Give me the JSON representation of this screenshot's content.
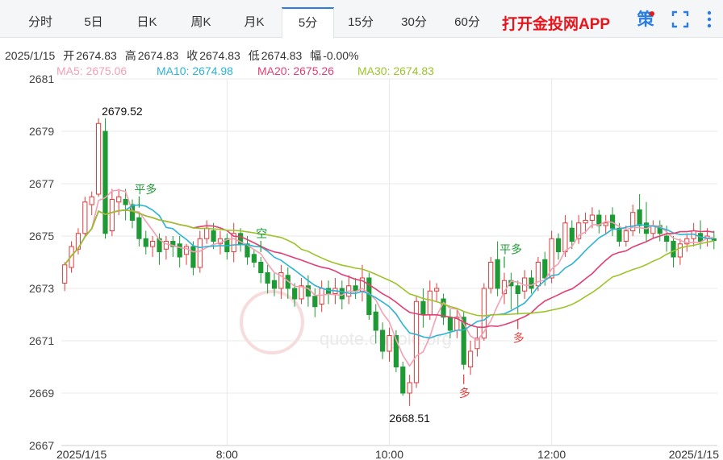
{
  "tabs": [
    {
      "label": "分时",
      "active": false
    },
    {
      "label": "5日",
      "active": false
    },
    {
      "label": "日K",
      "active": false
    },
    {
      "label": "周K",
      "active": false
    },
    {
      "label": "月K",
      "active": false
    },
    {
      "label": "5分",
      "active": true
    },
    {
      "label": "15分",
      "active": false
    },
    {
      "label": "30分",
      "active": false
    },
    {
      "label": "60分",
      "active": false
    }
  ],
  "promo_link": "打开金投网APP",
  "toolbar": {
    "strategy_icon_text": "策",
    "fullscreen_icon": "fullscreen-icon",
    "more_icon": "more-icon"
  },
  "quote": {
    "date": "2025/1/15",
    "open_label": "开",
    "open": "2674.83",
    "high_label": "高",
    "high": "2674.83",
    "close_label": "收",
    "close": "2674.83",
    "low_label": "低",
    "low": "2674.83",
    "change_label": "幅",
    "change": "-0.00%"
  },
  "ma_legend": [
    {
      "label": "MA5: 2675.06",
      "color": "#f4a0b4"
    },
    {
      "label": "MA10: 2674.98",
      "color": "#2bb3d6"
    },
    {
      "label": "MA20: 2675.26",
      "color": "#e23f72"
    },
    {
      "label": "MA30: 2674.83",
      "color": "#9cc42a"
    }
  ],
  "colors": {
    "up": "#e23b3b",
    "down": "#1e9a35",
    "grid": "#e8e8e8",
    "accent": "#2a7de1"
  },
  "chart_data": {
    "type": "candlestick",
    "y_ticks": [
      "2681",
      "2679",
      "2677",
      "2675",
      "2673",
      "2671",
      "2669",
      "2667"
    ],
    "ylim": [
      2667,
      2681
    ],
    "x_tick_labels": [
      {
        "label": "2025/1/15",
        "index": 0
      },
      {
        "label": "8:00",
        "index": 24
      },
      {
        "label": "10:00",
        "index": 48
      },
      {
        "label": "12:00",
        "index": 72
      },
      {
        "label": "2025/1/15",
        "index": 88
      }
    ],
    "candles": [
      [
        2673.2,
        2673.9,
        2672.9,
        2674.0
      ],
      [
        2673.8,
        2674.6,
        2673.6,
        2674.8
      ],
      [
        2674.5,
        2675.1,
        2674.3,
        2675.3
      ],
      [
        2675.1,
        2676.3,
        2675.0,
        2676.5
      ],
      [
        2676.2,
        2676.5,
        2675.8,
        2676.7
      ],
      [
        2676.6,
        2679.3,
        2676.5,
        2679.5
      ],
      [
        2679.0,
        2675.1,
        2674.9,
        2679.5
      ],
      [
        2675.2,
        2676.4,
        2675.0,
        2676.8
      ],
      [
        2676.3,
        2676.5,
        2675.8,
        2676.8
      ],
      [
        2676.4,
        2676.2,
        2675.6,
        2676.8
      ],
      [
        2676.2,
        2675.6,
        2675.3,
        2676.4
      ],
      [
        2675.7,
        2674.9,
        2674.6,
        2675.9
      ],
      [
        2674.9,
        2674.6,
        2674.3,
        2675.2
      ],
      [
        2674.6,
        2674.8,
        2674.2,
        2675.0
      ],
      [
        2674.9,
        2674.4,
        2673.9,
        2675.1
      ],
      [
        2674.5,
        2674.8,
        2674.1,
        2675.0
      ],
      [
        2674.8,
        2674.6,
        2674.2,
        2675.0
      ],
      [
        2674.7,
        2674.2,
        2673.8,
        2675.0
      ],
      [
        2674.3,
        2674.6,
        2673.9,
        2674.7
      ],
      [
        2674.6,
        2673.8,
        2673.5,
        2674.8
      ],
      [
        2673.8,
        2674.9,
        2673.6,
        2675.2
      ],
      [
        2674.9,
        2675.3,
        2674.7,
        2675.6
      ],
      [
        2675.2,
        2674.8,
        2674.5,
        2675.5
      ],
      [
        2674.7,
        2674.9,
        2674.3,
        2675.2
      ],
      [
        2674.9,
        2674.4,
        2674.1,
        2675.1
      ],
      [
        2674.4,
        2675.1,
        2674.0,
        2675.5
      ],
      [
        2675.1,
        2674.7,
        2674.4,
        2675.3
      ],
      [
        2674.7,
        2674.2,
        2673.9,
        2675.0
      ],
      [
        2674.3,
        2674.0,
        2673.8,
        2674.5
      ],
      [
        2674.0,
        2673.6,
        2673.2,
        2674.2
      ],
      [
        2673.6,
        2673.2,
        2672.8,
        2673.9
      ],
      [
        2673.3,
        2673.0,
        2672.7,
        2673.6
      ],
      [
        2673.0,
        2673.6,
        2672.6,
        2673.9
      ],
      [
        2673.5,
        2673.0,
        2672.6,
        2673.8
      ],
      [
        2673.0,
        2672.6,
        2672.3,
        2673.2
      ],
      [
        2672.6,
        2673.1,
        2672.4,
        2673.4
      ],
      [
        2673.1,
        2672.7,
        2672.3,
        2673.5
      ],
      [
        2672.7,
        2672.3,
        2671.9,
        2673.0
      ],
      [
        2672.4,
        2673.0,
        2672.1,
        2673.3
      ],
      [
        2673.0,
        2672.8,
        2672.4,
        2673.3
      ],
      [
        2672.8,
        2673.0,
        2672.4,
        2673.4
      ],
      [
        2673.0,
        2672.6,
        2672.2,
        2673.3
      ],
      [
        2672.7,
        2673.1,
        2672.4,
        2673.5
      ],
      [
        2673.1,
        2672.9,
        2672.6,
        2673.4
      ],
      [
        2672.9,
        2673.4,
        2672.5,
        2673.9
      ],
      [
        2673.4,
        2672.0,
        2671.8,
        2673.6
      ],
      [
        2672.1,
        2671.4,
        2670.9,
        2672.4
      ],
      [
        2671.4,
        2670.6,
        2670.3,
        2671.7
      ],
      [
        2670.6,
        2671.2,
        2670.2,
        2671.5
      ],
      [
        2671.2,
        2670.0,
        2669.8,
        2671.4
      ],
      [
        2670.0,
        2669.0,
        2668.9,
        2670.2
      ],
      [
        2669.0,
        2669.4,
        2668.51,
        2669.7
      ],
      [
        2669.4,
        2672.5,
        2669.2,
        2672.7
      ],
      [
        2672.5,
        2672.0,
        2671.5,
        2673.0
      ],
      [
        2672.0,
        2672.9,
        2671.8,
        2673.3
      ],
      [
        2672.9,
        2673.0,
        2672.5,
        2673.2
      ],
      [
        2672.6,
        2671.9,
        2671.6,
        2672.8
      ],
      [
        2671.9,
        2671.4,
        2671.1,
        2672.2
      ],
      [
        2671.4,
        2671.9,
        2671.1,
        2672.2
      ],
      [
        2671.9,
        2670.1,
        2669.9,
        2672.1
      ],
      [
        2670.0,
        2670.6,
        2669.7,
        2671.0
      ],
      [
        2670.7,
        2671.1,
        2670.4,
        2671.5
      ],
      [
        2671.1,
        2673.0,
        2671.0,
        2673.2
      ],
      [
        2673.0,
        2674.0,
        2672.8,
        2674.2
      ],
      [
        2674.1,
        2673.0,
        2672.7,
        2674.8
      ],
      [
        2672.8,
        2673.3,
        2672.4,
        2673.6
      ],
      [
        2673.3,
        2673.1,
        2672.2,
        2673.6
      ],
      [
        2673.1,
        2672.8,
        2672.0,
        2673.3
      ],
      [
        2672.9,
        2673.4,
        2672.6,
        2673.7
      ],
      [
        2673.4,
        2673.0,
        2672.8,
        2673.7
      ],
      [
        2673.1,
        2674.0,
        2672.9,
        2674.2
      ],
      [
        2674.1,
        2673.4,
        2673.1,
        2674.4
      ],
      [
        2673.4,
        2674.9,
        2673.2,
        2675.2
      ],
      [
        2674.9,
        2674.4,
        2674.1,
        2675.1
      ],
      [
        2674.4,
        2675.5,
        2674.2,
        2675.8
      ],
      [
        2675.3,
        2674.8,
        2674.5,
        2675.6
      ],
      [
        2674.9,
        2675.5,
        2674.7,
        2675.8
      ],
      [
        2675.5,
        2675.6,
        2675.1,
        2675.9
      ],
      [
        2675.6,
        2675.8,
        2675.3,
        2676.1
      ],
      [
        2675.8,
        2675.4,
        2675.1,
        2676.0
      ],
      [
        2675.4,
        2675.5,
        2675.1,
        2675.8
      ],
      [
        2675.8,
        2675.3,
        2675.0,
        2676.1
      ],
      [
        2675.3,
        2674.8,
        2674.6,
        2675.5
      ],
      [
        2674.8,
        2675.2,
        2674.6,
        2675.4
      ],
      [
        2675.2,
        2675.9,
        2675.0,
        2676.2
      ],
      [
        2676.0,
        2675.4,
        2675.1,
        2676.6
      ],
      [
        2675.5,
        2675.1,
        2674.8,
        2676.3
      ],
      [
        2675.1,
        2675.4,
        2674.9,
        2675.6
      ],
      [
        2675.4,
        2675.1,
        2674.8,
        2675.6
      ],
      [
        2675.0,
        2674.8,
        2674.4,
        2675.4
      ],
      [
        2674.8,
        2674.2,
        2673.8,
        2675.0
      ],
      [
        2674.2,
        2674.7,
        2673.9,
        2674.9
      ],
      [
        2674.7,
        2674.9,
        2674.4,
        2675.1
      ],
      [
        2674.9,
        2675.2,
        2674.6,
        2675.5
      ],
      [
        2675.1,
        2674.8,
        2674.5,
        2675.6
      ],
      [
        2674.9,
        2675.0,
        2674.6,
        2675.3
      ],
      [
        2674.9,
        2674.83,
        2674.5,
        2675.2
      ]
    ],
    "annotations": {
      "high_label": "2679.52",
      "low_label": "2668.51",
      "signals": [
        {
          "text": "平多",
          "type": "flat",
          "index": 11
        },
        {
          "text": "空",
          "type": "short",
          "index": 29
        },
        {
          "text": "多",
          "type": "long",
          "index": 59
        },
        {
          "text": "平多",
          "type": "flat",
          "index": 65
        },
        {
          "text": "多",
          "type": "long",
          "index": 67
        }
      ]
    },
    "watermark": "quote.cngold.org"
  }
}
